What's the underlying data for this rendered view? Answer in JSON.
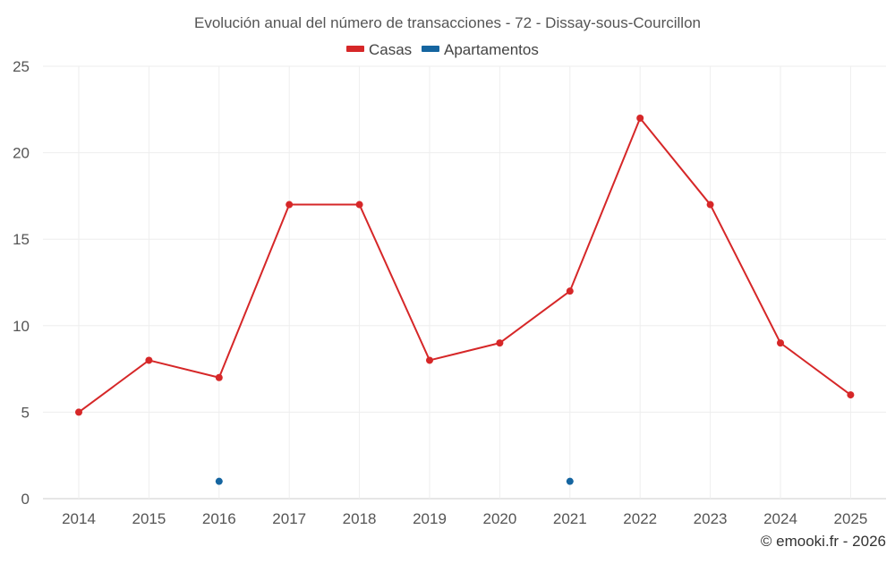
{
  "chart_data": {
    "type": "line",
    "title": "Evolución anual del número de transacciones - 72 - Dissay-sous-Courcillon",
    "categories": [
      "2014",
      "2015",
      "2016",
      "2017",
      "2018",
      "2019",
      "2020",
      "2021",
      "2022",
      "2023",
      "2024",
      "2025"
    ],
    "series": [
      {
        "name": "Casas",
        "color": "#d62728",
        "values": [
          5,
          8,
          7,
          17,
          17,
          8,
          9,
          12,
          22,
          17,
          9,
          6
        ]
      },
      {
        "name": "Apartamentos",
        "color": "#1565a0",
        "values": [
          null,
          null,
          1,
          null,
          null,
          null,
          null,
          1,
          null,
          null,
          null,
          null
        ]
      }
    ],
    "ylim": [
      0,
      25
    ],
    "yticks": [
      0,
      5,
      10,
      15,
      20,
      25
    ],
    "xlabel": "",
    "ylabel": "",
    "grid": true,
    "legend_position": "top-center"
  },
  "footer": {
    "credit": "© emooki.fr - 2026"
  }
}
